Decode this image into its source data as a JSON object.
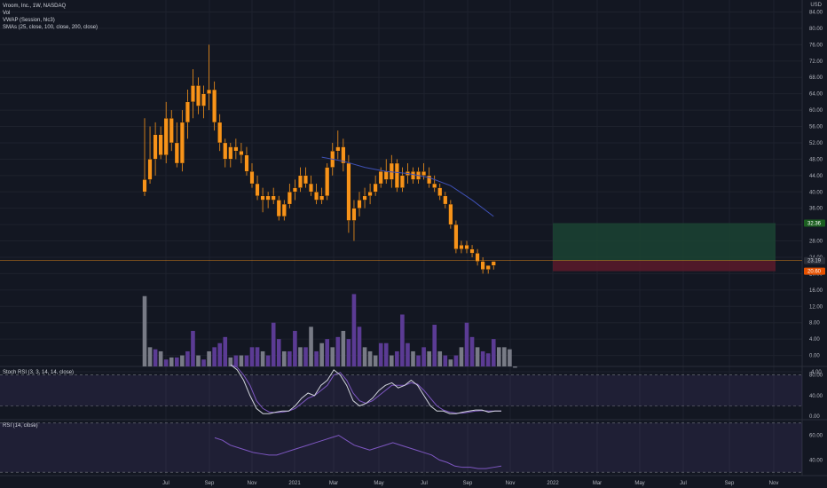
{
  "legend": {
    "symbol": "Vroom, Inc., 1W, NASDAQ",
    "vol": "Vol",
    "vwap": "VWAP (Session, hlc3)",
    "smas": "SMAs (25, close, 100, close, 200, close)",
    "stoch": "Stoch RSI (3, 3, 14, 14, close)",
    "rsi": "RSI (14, close)"
  },
  "currency": "USD",
  "colors": {
    "background": "#131722",
    "candle": "#f7931a",
    "sma": "#3f51b5",
    "vol_up": "#5b3b94",
    "vol_down": "#787b86",
    "stoch_k": "#d1d4dc",
    "stoch_d": "#7e57c2",
    "rsi": "#7e57c2",
    "profit": "#1b4332",
    "loss": "#5c1a2a",
    "price_line": "#f7931a",
    "target_tag": "#1b5e20",
    "stop_tag": "#e65100"
  },
  "chart_data": [
    {
      "type": "candlestick",
      "ylim": [
        -5.5,
        84
      ],
      "yticks": [
        "84.00",
        "80.00",
        "76.00",
        "72.00",
        "68.00",
        "64.00",
        "60.00",
        "56.00",
        "52.00",
        "48.00",
        "44.00",
        "40.00",
        "36.00",
        "32.00",
        "28.00",
        "24.00",
        "20.00",
        "16.00",
        "12.00",
        "8.00",
        "4.00",
        "0.00",
        "-4.00"
      ],
      "x_labels": [
        "Jul",
        "Sep",
        "Nov",
        "2021",
        "Mar",
        "May",
        "Jul",
        "Sep",
        "Nov",
        "2022",
        "Mar",
        "May",
        "Jul",
        "Sep",
        "Nov"
      ],
      "candles": [
        {
          "o": 40,
          "h": 58,
          "l": 39,
          "c": 43
        },
        {
          "o": 43,
          "h": 56,
          "l": 42,
          "c": 48
        },
        {
          "o": 48,
          "h": 57,
          "l": 44,
          "c": 54
        },
        {
          "o": 54,
          "h": 56,
          "l": 48,
          "c": 49
        },
        {
          "o": 49,
          "h": 62,
          "l": 47,
          "c": 58
        },
        {
          "o": 58,
          "h": 60,
          "l": 50,
          "c": 52
        },
        {
          "o": 52,
          "h": 57,
          "l": 46,
          "c": 47
        },
        {
          "o": 47,
          "h": 60,
          "l": 45,
          "c": 57
        },
        {
          "o": 57,
          "h": 65,
          "l": 53,
          "c": 62
        },
        {
          "o": 62,
          "h": 70,
          "l": 58,
          "c": 66
        },
        {
          "o": 66,
          "h": 68,
          "l": 59,
          "c": 61
        },
        {
          "o": 61,
          "h": 66,
          "l": 58,
          "c": 64
        },
        {
          "o": 64,
          "h": 76,
          "l": 60,
          "c": 65
        },
        {
          "o": 65,
          "h": 67,
          "l": 55,
          "c": 57
        },
        {
          "o": 57,
          "h": 59,
          "l": 50,
          "c": 52
        },
        {
          "o": 52,
          "h": 53,
          "l": 46,
          "c": 48
        },
        {
          "o": 48,
          "h": 52,
          "l": 46,
          "c": 51
        },
        {
          "o": 51,
          "h": 53,
          "l": 48,
          "c": 50
        },
        {
          "o": 50,
          "h": 52,
          "l": 47,
          "c": 49
        },
        {
          "o": 49,
          "h": 51,
          "l": 44,
          "c": 45
        },
        {
          "o": 45,
          "h": 47,
          "l": 41,
          "c": 42
        },
        {
          "o": 42,
          "h": 44,
          "l": 38,
          "c": 39
        },
        {
          "o": 39,
          "h": 41,
          "l": 35,
          "c": 38
        },
        {
          "o": 38,
          "h": 40,
          "l": 36,
          "c": 39
        },
        {
          "o": 39,
          "h": 41,
          "l": 37,
          "c": 38
        },
        {
          "o": 38,
          "h": 39,
          "l": 33,
          "c": 34
        },
        {
          "o": 34,
          "h": 38,
          "l": 33,
          "c": 37
        },
        {
          "o": 37,
          "h": 42,
          "l": 36,
          "c": 40
        },
        {
          "o": 40,
          "h": 43,
          "l": 38,
          "c": 41
        },
        {
          "o": 41,
          "h": 46,
          "l": 40,
          "c": 44
        },
        {
          "o": 44,
          "h": 46,
          "l": 41,
          "c": 42
        },
        {
          "o": 42,
          "h": 44,
          "l": 39,
          "c": 40
        },
        {
          "o": 40,
          "h": 42,
          "l": 37,
          "c": 38
        },
        {
          "o": 38,
          "h": 41,
          "l": 37,
          "c": 39
        },
        {
          "o": 39,
          "h": 47,
          "l": 38,
          "c": 46
        },
        {
          "o": 46,
          "h": 52,
          "l": 44,
          "c": 50
        },
        {
          "o": 50,
          "h": 55,
          "l": 48,
          "c": 51
        },
        {
          "o": 51,
          "h": 53,
          "l": 45,
          "c": 47
        },
        {
          "o": 47,
          "h": 49,
          "l": 30,
          "c": 33
        },
        {
          "o": 33,
          "h": 38,
          "l": 28,
          "c": 36
        },
        {
          "o": 36,
          "h": 40,
          "l": 34,
          "c": 38
        },
        {
          "o": 38,
          "h": 41,
          "l": 36,
          "c": 39
        },
        {
          "o": 39,
          "h": 42,
          "l": 37,
          "c": 40
        },
        {
          "o": 40,
          "h": 44,
          "l": 39,
          "c": 42
        },
        {
          "o": 42,
          "h": 46,
          "l": 41,
          "c": 45
        },
        {
          "o": 45,
          "h": 48,
          "l": 42,
          "c": 43
        },
        {
          "o": 43,
          "h": 49,
          "l": 41,
          "c": 47
        },
        {
          "o": 47,
          "h": 48,
          "l": 40,
          "c": 41
        },
        {
          "o": 41,
          "h": 46,
          "l": 40,
          "c": 44
        },
        {
          "o": 44,
          "h": 47,
          "l": 42,
          "c": 45
        },
        {
          "o": 45,
          "h": 46,
          "l": 42,
          "c": 43
        },
        {
          "o": 43,
          "h": 46,
          "l": 42,
          "c": 45
        },
        {
          "o": 45,
          "h": 47,
          "l": 43,
          "c": 44
        },
        {
          "o": 44,
          "h": 46,
          "l": 41,
          "c": 42
        },
        {
          "o": 42,
          "h": 44,
          "l": 40,
          "c": 41
        },
        {
          "o": 41,
          "h": 42,
          "l": 38,
          "c": 39
        },
        {
          "o": 39,
          "h": 40,
          "l": 36,
          "c": 37
        },
        {
          "o": 37,
          "h": 38,
          "l": 31,
          "c": 32
        },
        {
          "o": 32,
          "h": 33,
          "l": 25,
          "c": 26
        },
        {
          "o": 26,
          "h": 28,
          "l": 25,
          "c": 27
        },
        {
          "o": 27,
          "h": 28,
          "l": 25,
          "c": 26
        },
        {
          "o": 26,
          "h": 27,
          "l": 24,
          "c": 25
        },
        {
          "o": 25,
          "h": 26,
          "l": 22,
          "c": 23
        },
        {
          "o": 23,
          "h": 24,
          "l": 20,
          "c": 21
        },
        {
          "o": 21,
          "h": 22,
          "l": 20,
          "c": 22
        },
        {
          "o": 22,
          "h": 23,
          "l": 21,
          "c": 23
        }
      ],
      "sma": [
        {
          "i": 33,
          "v": 48.5
        },
        {
          "i": 37,
          "v": 47.5
        },
        {
          "i": 41,
          "v": 46
        },
        {
          "i": 45,
          "v": 45
        },
        {
          "i": 49,
          "v": 44.5
        },
        {
          "i": 53,
          "v": 43.5
        },
        {
          "i": 57,
          "v": 41.5
        },
        {
          "i": 61,
          "v": 38
        },
        {
          "i": 65,
          "v": 34
        }
      ],
      "current_price": "23.19",
      "current_price_value": 23.19,
      "position": {
        "entry": 23.2,
        "target": 32.36,
        "stop": 20.6,
        "target_label": "32.36",
        "stop_label": "20.60"
      },
      "volume": [
        {
          "v": 14.5,
          "up": false
        },
        {
          "v": 2,
          "up": false
        },
        {
          "v": 1.5,
          "up": true
        },
        {
          "v": 1,
          "up": false
        },
        {
          "v": -1,
          "up": true
        },
        {
          "v": -0.5,
          "up": false
        },
        {
          "v": -0.5,
          "up": true
        },
        {
          "v": 0,
          "up": false
        },
        {
          "v": 1,
          "up": true
        },
        {
          "v": 6,
          "up": true
        },
        {
          "v": 0,
          "up": false
        },
        {
          "v": -1,
          "up": true
        },
        {
          "v": 1,
          "up": false
        },
        {
          "v": 2,
          "up": true
        },
        {
          "v": 3,
          "up": true
        },
        {
          "v": 4.5,
          "up": true
        },
        {
          "v": -0.5,
          "up": false
        },
        {
          "v": 0,
          "up": true
        },
        {
          "v": 0,
          "up": false
        },
        {
          "v": 0,
          "up": true
        },
        {
          "v": 2,
          "up": true
        },
        {
          "v": 2,
          "up": true
        },
        {
          "v": 1,
          "up": false
        },
        {
          "v": 0,
          "up": true
        },
        {
          "v": 8,
          "up": true
        },
        {
          "v": 4,
          "up": true
        },
        {
          "v": 1,
          "up": false
        },
        {
          "v": 1,
          "up": true
        },
        {
          "v": 6,
          "up": true
        },
        {
          "v": 2,
          "up": false
        },
        {
          "v": 2,
          "up": true
        },
        {
          "v": 7,
          "up": false
        },
        {
          "v": 1,
          "up": true
        },
        {
          "v": 3,
          "up": false
        },
        {
          "v": 4,
          "up": true
        },
        {
          "v": 2,
          "up": false
        },
        {
          "v": 4.5,
          "up": true
        },
        {
          "v": 6,
          "up": false
        },
        {
          "v": 4,
          "up": true
        },
        {
          "v": 15,
          "up": true
        },
        {
          "v": 7,
          "up": true
        },
        {
          "v": 2,
          "up": false
        },
        {
          "v": 1,
          "up": false
        },
        {
          "v": 0,
          "up": false
        },
        {
          "v": 3,
          "up": true
        },
        {
          "v": 3,
          "up": true
        },
        {
          "v": 0,
          "up": false
        },
        {
          "v": 1,
          "up": true
        },
        {
          "v": 10,
          "up": true
        },
        {
          "v": 3,
          "up": true
        },
        {
          "v": 1,
          "up": false
        },
        {
          "v": 0,
          "up": true
        },
        {
          "v": 2,
          "up": true
        },
        {
          "v": 1,
          "up": false
        },
        {
          "v": 7.5,
          "up": true
        },
        {
          "v": 1,
          "up": false
        },
        {
          "v": 0,
          "up": true
        },
        {
          "v": -1,
          "up": false
        },
        {
          "v": 0,
          "up": true
        },
        {
          "v": 2,
          "up": false
        },
        {
          "v": 8,
          "up": true
        },
        {
          "v": 4.5,
          "up": true
        },
        {
          "v": 2,
          "up": false
        },
        {
          "v": 1,
          "up": true
        },
        {
          "v": 0.5,
          "up": true
        },
        {
          "v": 4,
          "up": true
        },
        {
          "v": 2,
          "up": false
        },
        {
          "v": 2,
          "up": false
        },
        {
          "v": 1.5,
          "up": false
        },
        {
          "v": -3,
          "up": false
        }
      ]
    },
    {
      "type": "line",
      "name": "Stoch RSI",
      "ylim": [
        -5,
        95
      ],
      "yticks": [
        "80.00",
        "40.00",
        "0.00"
      ],
      "bands": [
        80,
        20
      ],
      "k": [
        100,
        90,
        70,
        40,
        15,
        5,
        5,
        8,
        10,
        10,
        20,
        35,
        45,
        40,
        60,
        70,
        90,
        80,
        60,
        30,
        20,
        25,
        35,
        50,
        60,
        65,
        55,
        60,
        70,
        60,
        40,
        20,
        10,
        10,
        5,
        5,
        8,
        10,
        12,
        12,
        8,
        10,
        10
      ],
      "d": [
        100,
        95,
        80,
        60,
        30,
        15,
        8,
        7,
        8,
        10,
        15,
        25,
        35,
        40,
        50,
        60,
        80,
        85,
        70,
        45,
        30,
        25,
        30,
        40,
        50,
        60,
        60,
        60,
        65,
        62,
        50,
        35,
        20,
        12,
        8,
        6,
        6,
        8,
        10,
        11,
        10,
        10,
        10
      ]
    },
    {
      "type": "line",
      "name": "RSI",
      "ylim": [
        30,
        70
      ],
      "yticks": [
        "60.00",
        "40.00"
      ],
      "bands": [
        70,
        30
      ],
      "values": [
        58,
        56,
        52,
        50,
        48,
        46,
        45,
        44,
        44,
        46,
        48,
        50,
        52,
        54,
        56,
        58,
        60,
        56,
        52,
        50,
        48,
        50,
        52,
        54,
        52,
        50,
        48,
        46,
        44,
        40,
        38,
        35,
        34,
        34,
        33,
        33,
        34,
        35
      ]
    }
  ]
}
